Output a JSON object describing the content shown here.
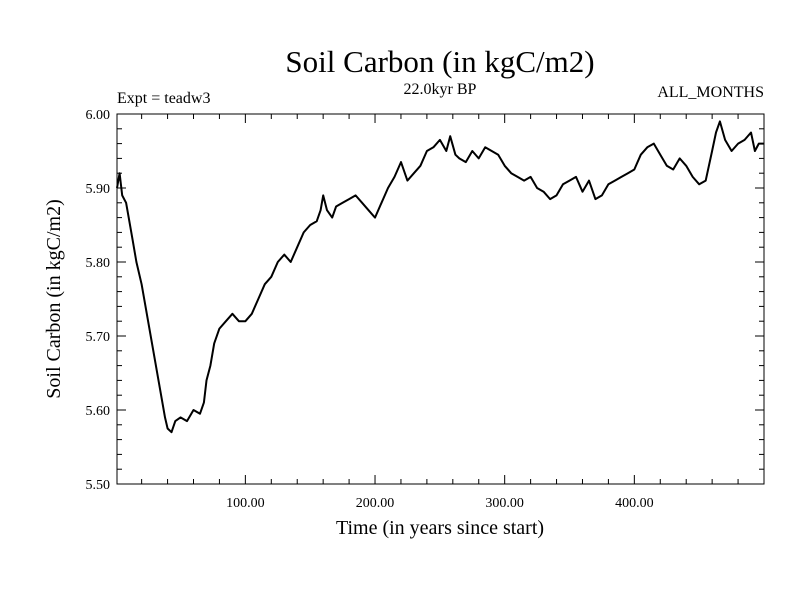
{
  "chart_data": {
    "type": "line",
    "title": "Soil Carbon (in kgC/m2)",
    "subtitle": "22.0kyr BP",
    "experiment_label": "Expt = teadw3",
    "period_label": "ALL_MONTHS",
    "xlabel": "Time (in years since start)",
    "ylabel": "Soil Carbon (in kgC/m2)",
    "xlim": [
      1,
      500
    ],
    "ylim": [
      5.5,
      6.0
    ],
    "x_ticks": [
      100,
      200,
      300,
      400
    ],
    "x_tick_labels": [
      "100.00",
      "200.00",
      "300.00",
      "400.00"
    ],
    "y_ticks": [
      5.5,
      5.6,
      5.7,
      5.8,
      5.9,
      6.0
    ],
    "y_tick_labels": [
      "5.50",
      "5.60",
      "5.70",
      "5.80",
      "5.90",
      "6.00"
    ],
    "grid": false,
    "line_color": "#000000",
    "series": [
      {
        "name": "Soil Carbon",
        "x": [
          1,
          3,
          5,
          8,
          10,
          13,
          16,
          20,
          25,
          30,
          35,
          38,
          40,
          43,
          46,
          50,
          55,
          60,
          65,
          68,
          70,
          73,
          76,
          80,
          85,
          90,
          95,
          100,
          105,
          110,
          115,
          120,
          125,
          130,
          135,
          140,
          145,
          150,
          155,
          158,
          160,
          163,
          167,
          170,
          175,
          180,
          185,
          190,
          195,
          200,
          205,
          210,
          215,
          220,
          225,
          230,
          235,
          240,
          245,
          250,
          255,
          258,
          262,
          265,
          270,
          275,
          280,
          285,
          290,
          295,
          300,
          305,
          310,
          315,
          320,
          325,
          330,
          335,
          340,
          345,
          350,
          355,
          360,
          365,
          370,
          375,
          380,
          385,
          390,
          395,
          400,
          405,
          410,
          415,
          420,
          425,
          430,
          435,
          440,
          445,
          450,
          455,
          460,
          463,
          466,
          470,
          475,
          480,
          485,
          490,
          493,
          496,
          500
        ],
        "y": [
          5.9,
          5.92,
          5.89,
          5.88,
          5.86,
          5.83,
          5.8,
          5.77,
          5.72,
          5.67,
          5.62,
          5.59,
          5.575,
          5.57,
          5.585,
          5.59,
          5.585,
          5.6,
          5.595,
          5.61,
          5.64,
          5.66,
          5.69,
          5.71,
          5.72,
          5.73,
          5.72,
          5.72,
          5.73,
          5.75,
          5.77,
          5.78,
          5.8,
          5.81,
          5.8,
          5.82,
          5.84,
          5.85,
          5.855,
          5.87,
          5.89,
          5.87,
          5.86,
          5.875,
          5.88,
          5.885,
          5.89,
          5.88,
          5.87,
          5.86,
          5.88,
          5.9,
          5.915,
          5.935,
          5.91,
          5.92,
          5.93,
          5.95,
          5.955,
          5.965,
          5.95,
          5.97,
          5.945,
          5.94,
          5.935,
          5.95,
          5.94,
          5.955,
          5.95,
          5.945,
          5.93,
          5.92,
          5.915,
          5.91,
          5.915,
          5.9,
          5.895,
          5.885,
          5.89,
          5.905,
          5.91,
          5.915,
          5.895,
          5.91,
          5.885,
          5.89,
          5.905,
          5.91,
          5.915,
          5.92,
          5.925,
          5.945,
          5.955,
          5.96,
          5.945,
          5.93,
          5.925,
          5.94,
          5.93,
          5.915,
          5.905,
          5.91,
          5.95,
          5.975,
          5.99,
          5.965,
          5.95,
          5.96,
          5.965,
          5.975,
          5.95,
          5.96,
          5.96
        ]
      }
    ]
  }
}
